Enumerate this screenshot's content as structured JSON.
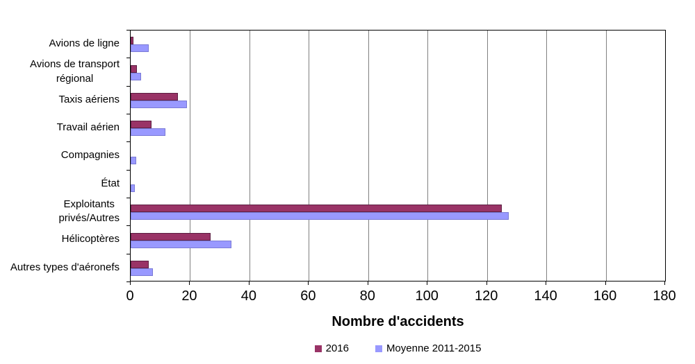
{
  "chart_data": {
    "type": "bar",
    "orientation": "horizontal",
    "title": "",
    "xlabel": "Nombre d'accidents",
    "ylabel": "",
    "xlim": [
      0,
      180
    ],
    "xticks": [
      0,
      20,
      40,
      60,
      80,
      100,
      120,
      140,
      160,
      180
    ],
    "grid": "vertical-gridlines-on",
    "gridline_color": "#808080",
    "axis_color": "#000000",
    "plot_background": "#FFFFFF",
    "legend_position": "bottom-center",
    "categories": [
      "Avions de ligne",
      "Avions de transport régional",
      "Taxis aériens",
      "Travail aérien",
      "Compagnies",
      "État",
      "Exploitants privés/Autres",
      "Hélicoptères",
      "Autres types d'aéronefs"
    ],
    "category_label_lines": [
      [
        "Avions de ligne"
      ],
      [
        "Avions de transport",
        "régional"
      ],
      [
        "Taxis aériens"
      ],
      [
        "Travail aérien"
      ],
      [
        "Compagnies"
      ],
      [
        "État"
      ],
      [
        "Exploitants",
        "privés/Autres"
      ],
      [
        "Hélicoptères"
      ],
      [
        "Autres types d'aéronefs"
      ]
    ],
    "series": [
      {
        "name": "2016",
        "color": "#993366",
        "border_color": "#5C1F42",
        "values": [
          1,
          2,
          16,
          7,
          0,
          0,
          125,
          27,
          6
        ]
      },
      {
        "name": "Moyenne 2011-2015",
        "color": "#9999FF",
        "border_color": "#7A7AD6",
        "values": [
          6.2,
          3.4,
          19,
          11.8,
          1.8,
          1.4,
          127.4,
          34,
          7.6
        ]
      }
    ]
  }
}
